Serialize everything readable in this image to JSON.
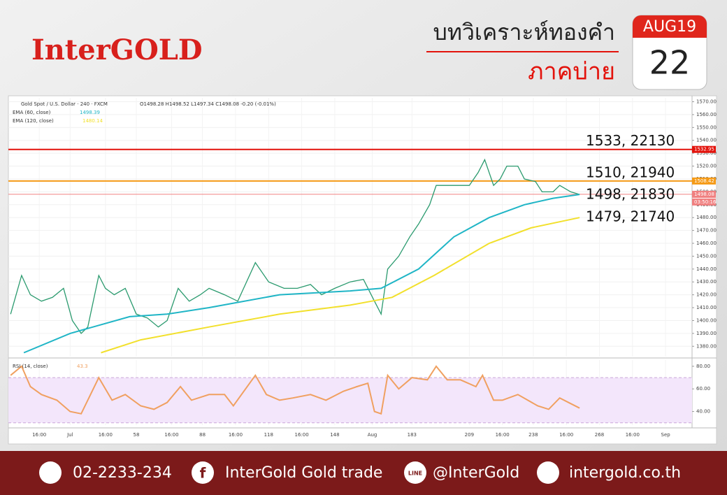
{
  "header": {
    "logo": "InterGOLD",
    "title": "บทวิเคราะห์ทองคำ",
    "subtitle": "ภาคบ่าย",
    "month": "AUG19",
    "day": "22"
  },
  "footer": {
    "phone": "02-2233-234",
    "facebook": "InterGold Gold trade",
    "line": "@InterGold",
    "website": "intergold.co.th"
  },
  "chart_data": [
    {
      "type": "line",
      "title": "Gold Spot / U.S. Dollar · 240 · FXCM",
      "subtitle": "O1498.28 H1498.52 L1497.34 C1498.08 -0.20 (-0.01%)",
      "xlim": [
        0,
        310
      ],
      "ylim": [
        1372,
        1573
      ],
      "xticks": [
        {
          "value": 14,
          "label": "16:00"
        },
        {
          "value": 28,
          "label": "Jul"
        },
        {
          "value": 44,
          "label": "16:00"
        },
        58,
        {
          "value": 74,
          "label": "16:00"
        },
        88,
        {
          "value": 103,
          "label": "16:00"
        },
        118,
        {
          "value": 133,
          "label": "16:00"
        },
        148,
        {
          "value": 165,
          "label": "Aug"
        },
        183,
        209,
        {
          "value": 224,
          "label": "16:00"
        },
        238,
        {
          "value": 253,
          "label": "16:00"
        },
        268,
        {
          "value": 283,
          "label": "16:00"
        },
        {
          "value": 298,
          "label": "Sep"
        }
      ],
      "yticks": [
        {
          "value": 1380,
          "label": "1380.00"
        },
        {
          "value": 1390,
          "label": "1390.00"
        },
        {
          "value": 1400,
          "label": "1400.00"
        },
        {
          "value": 1410,
          "label": "1410.00"
        },
        {
          "value": 1420,
          "label": "1420.00"
        },
        {
          "value": 1430,
          "label": "1430.00"
        },
        {
          "value": 1440,
          "label": "1440.00"
        },
        {
          "value": 1450,
          "label": "1450.00"
        },
        {
          "value": 1460,
          "label": "1460.00"
        },
        {
          "value": 1470,
          "label": "1470.00"
        },
        {
          "value": 1480,
          "label": "1480.00"
        },
        {
          "value": 1490,
          "label": "1490.00"
        },
        {
          "value": 1500,
          "label": "1500.00"
        },
        {
          "value": 1510,
          "label": "1510.00"
        },
        {
          "value": 1520,
          "label": "1520.00"
        },
        {
          "value": 1530,
          "label": "1530.00"
        },
        {
          "value": 1540,
          "label": "1540.00"
        },
        {
          "value": 1550,
          "label": "1550.00"
        },
        {
          "value": 1560,
          "label": "1560.00"
        },
        {
          "value": 1570,
          "label": "1570.00"
        }
      ],
      "grid": true,
      "series": [
        {
          "name": "Gold Spot / U.S. Dollar",
          "color": "#2a9a6e",
          "x": [
            1,
            6,
            10,
            15,
            20,
            25,
            29,
            33,
            36,
            41,
            44,
            48,
            53,
            58,
            63,
            68,
            72,
            77,
            82,
            87,
            91,
            98,
            104,
            112,
            118,
            125,
            131,
            137,
            142,
            148,
            155,
            161,
            166,
            169,
            172,
            177,
            182,
            186,
            191,
            194,
            199,
            204,
            209,
            213,
            216,
            220,
            223,
            226,
            231,
            234,
            239,
            242,
            247,
            250,
            255,
            259
          ],
          "values": [
            1405,
            1435,
            1420,
            1415,
            1418,
            1425,
            1400,
            1390,
            1395,
            1435,
            1425,
            1420,
            1425,
            1405,
            1402,
            1395,
            1400,
            1425,
            1415,
            1420,
            1425,
            1420,
            1415,
            1445,
            1430,
            1425,
            1425,
            1428,
            1420,
            1425,
            1430,
            1432,
            1415,
            1405,
            1440,
            1450,
            1465,
            1475,
            1490,
            1505,
            1505,
            1505,
            1505,
            1515,
            1525,
            1505,
            1510,
            1520,
            1520,
            1510,
            1508,
            1500,
            1500,
            1505,
            1500,
            1498
          ]
        },
        {
          "name": "EMA (60, close)",
          "color": "#1fb5c6",
          "last_value": 1498.39,
          "x": [
            7,
            28,
            55,
            72,
            91,
            123,
            155,
            169,
            186,
            202,
            218,
            234,
            247,
            259
          ],
          "values": [
            1375,
            1390,
            1403,
            1405,
            1410,
            1420,
            1423,
            1425,
            1440,
            1465,
            1480,
            1490,
            1495,
            1498
          ]
        },
        {
          "name": "EMA (120, close)",
          "color": "#f2e02c",
          "last_value": 1480.14,
          "x": [
            42,
            60,
            91,
            123,
            155,
            174,
            193,
            218,
            237,
            259
          ],
          "values": [
            1375,
            1385,
            1395,
            1405,
            1412,
            1418,
            1435,
            1460,
            1472,
            1480
          ]
        }
      ],
      "levels": [
        {
          "value": 1532.95,
          "color": "#e3120b",
          "annotation": "1533, 22130"
        },
        {
          "value": 1508.42,
          "color": "#f59a16",
          "annotation": "1510, 21940"
        },
        {
          "value": 1498.08,
          "color": "#f08080",
          "annotation": "1498, 21830",
          "countdown": "03:50:16"
        }
      ],
      "annotations": [
        {
          "value": 1479,
          "text": "1479, 21740"
        }
      ]
    },
    {
      "type": "line",
      "xlim": [
        0,
        310
      ],
      "ylim": [
        28,
        85.5
      ],
      "band": [
        30,
        70
      ],
      "yticks": [
        {
          "value": 40,
          "label": "40.00"
        },
        {
          "value": 60,
          "label": "60.00"
        },
        {
          "value": 80,
          "label": "80.00"
        }
      ],
      "series": [
        {
          "name": "RSI (14, close)",
          "color": "#f0a060",
          "last_value": 43.3,
          "x": [
            1,
            6,
            10,
            15,
            22,
            28,
            33,
            41,
            47,
            53,
            60,
            66,
            72,
            78,
            83,
            91,
            98,
            102,
            112,
            117,
            123,
            129,
            137,
            144,
            152,
            158,
            163,
            166,
            169,
            172,
            177,
            183,
            190,
            194,
            199,
            205,
            212,
            215,
            220,
            224,
            231,
            240,
            245,
            250,
            255,
            259
          ],
          "values": [
            72,
            80,
            62,
            55,
            50,
            40,
            38,
            70,
            50,
            55,
            45,
            42,
            48,
            62,
            50,
            55,
            55,
            45,
            72,
            55,
            50,
            52,
            55,
            50,
            58,
            62,
            65,
            40,
            38,
            72,
            60,
            70,
            68,
            80,
            68,
            68,
            62,
            72,
            50,
            50,
            55,
            45,
            42,
            52,
            47,
            43
          ]
        }
      ]
    }
  ]
}
